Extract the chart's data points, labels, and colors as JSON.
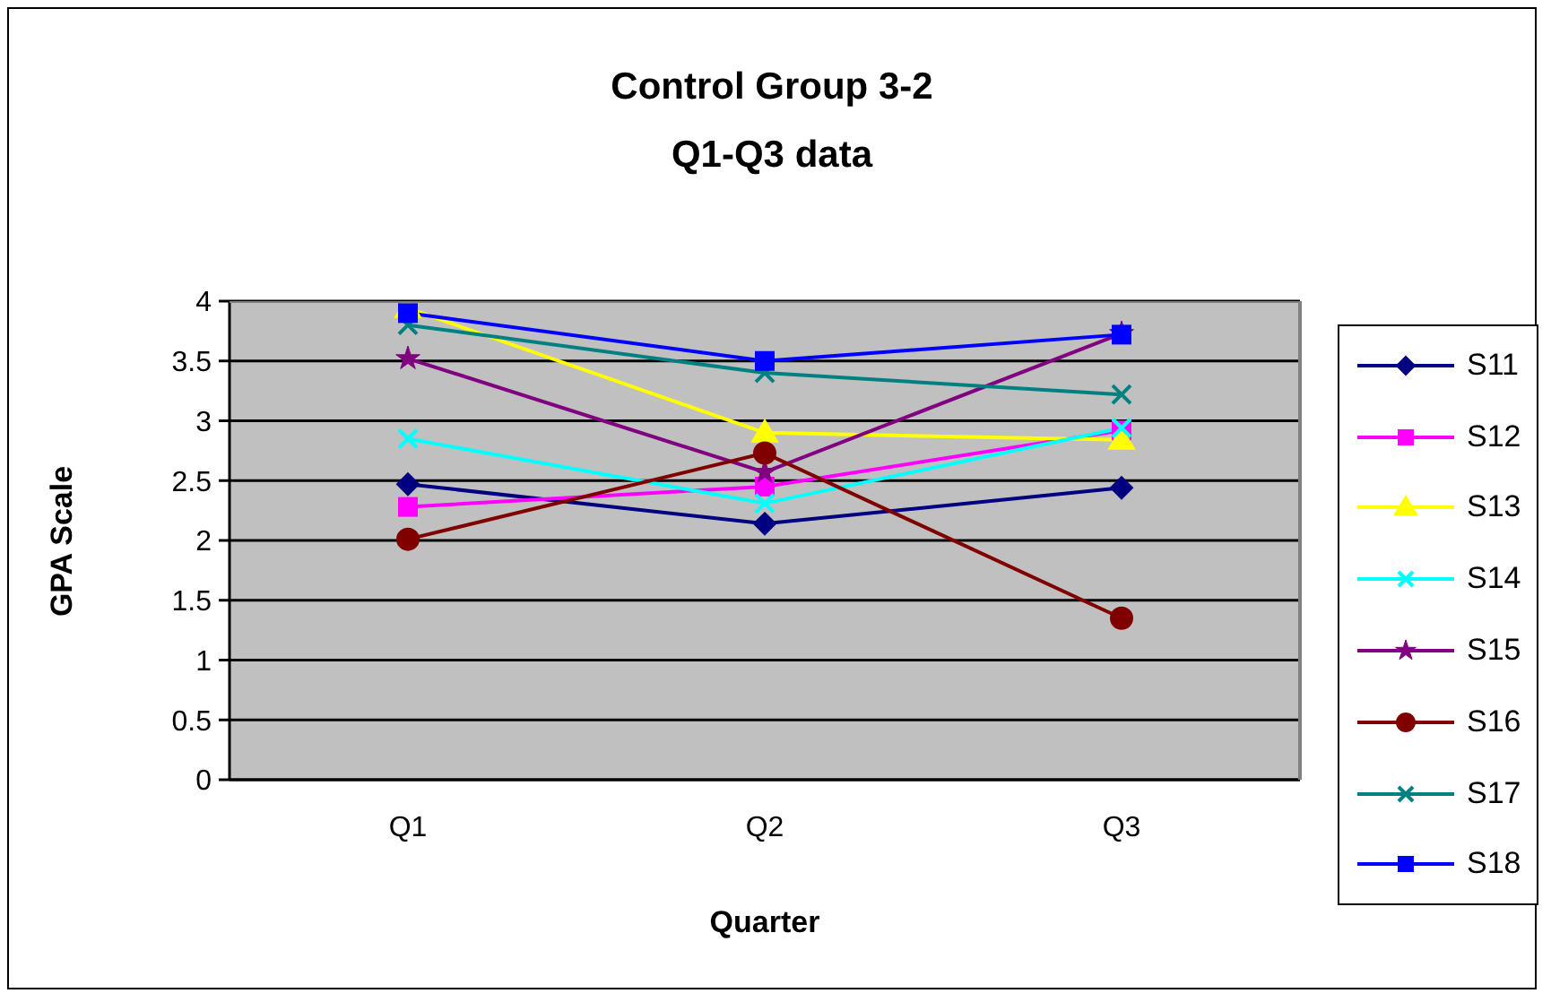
{
  "chart_data": {
    "type": "line",
    "title": "Control Group 3-2\nQ1-Q3 data",
    "xlabel": "Quarter",
    "ylabel": "GPA Scale",
    "categories": [
      "Q1",
      "Q2",
      "Q3"
    ],
    "ylim": [
      0,
      4
    ],
    "yticks": [
      0,
      0.5,
      1,
      1.5,
      2,
      2.5,
      3,
      3.5,
      4
    ],
    "grid": "y",
    "legend": "right",
    "series": [
      {
        "name": "S11",
        "color": "#000080",
        "marker": "diamond",
        "values": [
          2.47,
          2.14,
          2.44
        ]
      },
      {
        "name": "S12",
        "color": "#ff00ff",
        "marker": "square",
        "values": [
          2.28,
          2.45,
          2.92
        ]
      },
      {
        "name": "S13",
        "color": "#ffff00",
        "marker": "triangle",
        "values": [
          3.94,
          2.9,
          2.84
        ]
      },
      {
        "name": "S14",
        "color": "#00ffff",
        "marker": "cross",
        "values": [
          2.85,
          2.31,
          2.94
        ]
      },
      {
        "name": "S15",
        "color": "#800080",
        "marker": "star",
        "values": [
          3.52,
          2.57,
          3.73
        ]
      },
      {
        "name": "S16",
        "color": "#800000",
        "marker": "circle",
        "values": [
          2.01,
          2.73,
          1.35
        ]
      },
      {
        "name": "S17",
        "color": "#008080",
        "marker": "cross",
        "values": [
          3.8,
          3.4,
          3.22
        ]
      },
      {
        "name": "S18",
        "color": "#0000ff",
        "marker": "square",
        "values": [
          3.9,
          3.5,
          3.72
        ]
      }
    ]
  }
}
